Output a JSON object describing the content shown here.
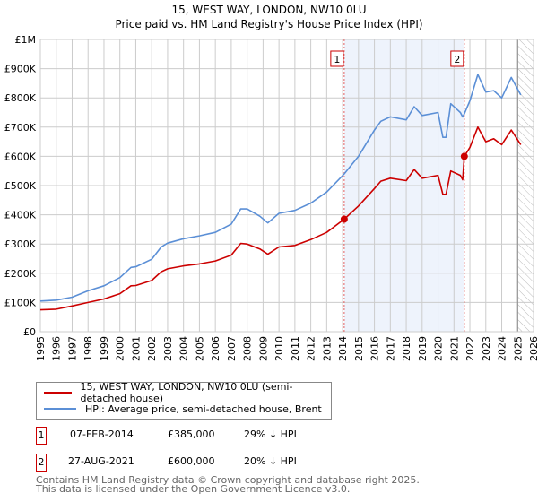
{
  "header": {
    "title": "15, WEST WAY, LONDON, NW10 0LU",
    "subtitle": "Price paid vs. HM Land Registry's House Price Index (HPI)"
  },
  "chart_data": {
    "type": "line",
    "title": "15, WEST WAY, LONDON, NW10 0LU",
    "subtitle": "Price paid vs. HM Land Registry's House Price Index (HPI)",
    "xlabel": "",
    "ylabel": "",
    "xlim": [
      1995,
      2026
    ],
    "ylim": [
      0,
      1000000
    ],
    "x_ticks": [
      "1995",
      "1996",
      "1997",
      "1998",
      "1999",
      "2000",
      "2001",
      "2002",
      "2003",
      "2004",
      "2005",
      "2006",
      "2007",
      "2008",
      "2009",
      "2010",
      "2011",
      "2012",
      "2013",
      "2014",
      "2015",
      "2016",
      "2017",
      "2018",
      "2019",
      "2020",
      "2021",
      "2022",
      "2023",
      "2024",
      "2025",
      "2026"
    ],
    "y_ticks": [
      {
        "v": 0,
        "label": "£0"
      },
      {
        "v": 100000,
        "label": "£100K"
      },
      {
        "v": 200000,
        "label": "£200K"
      },
      {
        "v": 300000,
        "label": "£300K"
      },
      {
        "v": 400000,
        "label": "£400K"
      },
      {
        "v": 500000,
        "label": "£500K"
      },
      {
        "v": 600000,
        "label": "£600K"
      },
      {
        "v": 700000,
        "label": "£700K"
      },
      {
        "v": 800000,
        "label": "£800K"
      },
      {
        "v": 900000,
        "label": "£900K"
      },
      {
        "v": 1000000,
        "label": "£1M"
      }
    ],
    "grid": true,
    "series": [
      {
        "name": "15, WEST WAY, LONDON, NW10 0LU (semi-detached house)",
        "color": "#cc0000",
        "x": [
          1995,
          1996,
          1997,
          1998,
          1999,
          2000,
          2000.7,
          2001,
          2002,
          2002.6,
          2003,
          2004,
          2005,
          2006,
          2007,
          2007.6,
          2008,
          2008.8,
          2009.3,
          2010,
          2011,
          2012,
          2013,
          2014.1,
          2015,
          2016,
          2016.4,
          2017,
          2018,
          2018.5,
          2019,
          2020,
          2020.3,
          2020.5,
          2020.8,
          2021.4,
          2021.55,
          2021.65,
          2022,
          2022.5,
          2023,
          2023.5,
          2024,
          2024.6,
          2025.2
        ],
        "y": [
          75000,
          77000,
          88000,
          100000,
          112000,
          130000,
          157000,
          158000,
          175000,
          205000,
          215000,
          225000,
          232000,
          242000,
          262000,
          302000,
          300000,
          283000,
          265000,
          290000,
          295000,
          315000,
          340000,
          385000,
          430000,
          490000,
          515000,
          525000,
          517000,
          555000,
          525000,
          535000,
          470000,
          470000,
          550000,
          535000,
          520000,
          600000,
          630000,
          700000,
          650000,
          660000,
          640000,
          690000,
          640000
        ]
      },
      {
        "name": "HPI: Average price, semi-detached house, Brent",
        "color": "#5b8fd6",
        "x": [
          1995,
          1996,
          1997,
          1998,
          1999,
          2000,
          2000.7,
          2001,
          2002,
          2002.6,
          2003,
          2004,
          2005,
          2006,
          2007,
          2007.6,
          2008,
          2008.8,
          2009.3,
          2010,
          2011,
          2012,
          2013,
          2014.1,
          2015,
          2016,
          2016.4,
          2017,
          2018,
          2018.5,
          2019,
          2020,
          2020.3,
          2020.5,
          2020.8,
          2021.4,
          2021.55,
          2021.65,
          2022,
          2022.5,
          2023,
          2023.5,
          2024,
          2024.6,
          2025.2
        ],
        "y": [
          105000,
          108000,
          118000,
          140000,
          157000,
          185000,
          220000,
          222000,
          248000,
          290000,
          303000,
          318000,
          328000,
          340000,
          368000,
          420000,
          420000,
          395000,
          372000,
          405000,
          415000,
          440000,
          478000,
          540000,
          600000,
          690000,
          720000,
          735000,
          725000,
          770000,
          740000,
          750000,
          665000,
          665000,
          780000,
          750000,
          735000,
          745000,
          790000,
          880000,
          820000,
          825000,
          800000,
          870000,
          810000
        ]
      }
    ],
    "annotations": [
      {
        "label": "1",
        "x": 2014.1,
        "y": 385000
      },
      {
        "label": "2",
        "x": 2021.65,
        "y": 600000
      }
    ],
    "shaded_range": [
      2014.1,
      2021.65
    ],
    "hatched_from": 2025.0,
    "legend_placement": "below"
  },
  "legend": {
    "items": [
      {
        "label": "15, WEST WAY, LONDON, NW10 0LU (semi-detached house)",
        "color": "#cc0000"
      },
      {
        "label": "HPI: Average price, semi-detached house, Brent",
        "color": "#5b8fd6"
      }
    ]
  },
  "sales": [
    {
      "num": "1",
      "date": "07-FEB-2014",
      "price": "£385,000",
      "delta": "29% ↓ HPI"
    },
    {
      "num": "2",
      "date": "27-AUG-2021",
      "price": "£600,000",
      "delta": "20% ↓ HPI"
    }
  ],
  "footer": {
    "line1": "Contains HM Land Registry data © Crown copyright and database right 2025.",
    "line2": "This data is licensed under the Open Government Licence v3.0."
  }
}
